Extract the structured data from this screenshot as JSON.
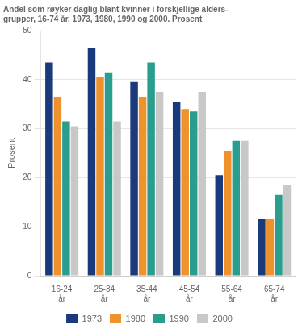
{
  "chart_data": {
    "type": "bar",
    "title": [
      "Andel som røyker daglig blant kvinner i forskjellige alders-",
      "grupper, 16-74 år. 1973, 1980, 1990 og 2000. Prosent"
    ],
    "ylabel": "Prosent",
    "categories": [
      "16-24\når",
      "25-34\når",
      "35-44\når",
      "45-54\når",
      "55-64\når",
      "65-74\når"
    ],
    "series": [
      {
        "name": "1973",
        "color": "#1a3a7c",
        "values": [
          43.5,
          46.5,
          39.5,
          35.5,
          20.5,
          11.5
        ]
      },
      {
        "name": "1980",
        "color": "#f0922b",
        "values": [
          36.5,
          40.5,
          36.5,
          34.0,
          25.5,
          11.5
        ]
      },
      {
        "name": "1990",
        "color": "#2a9d8f",
        "values": [
          31.5,
          41.5,
          43.5,
          33.5,
          27.5,
          16.5
        ]
      },
      {
        "name": "2000",
        "color": "#c8c8c8",
        "values": [
          30.5,
          31.5,
          37.5,
          37.5,
          27.5,
          18.5
        ]
      }
    ],
    "ylim": [
      0,
      50
    ],
    "yticks": [
      0,
      10,
      20,
      30,
      40,
      50
    ],
    "grid": true,
    "legend": "bottom"
  }
}
